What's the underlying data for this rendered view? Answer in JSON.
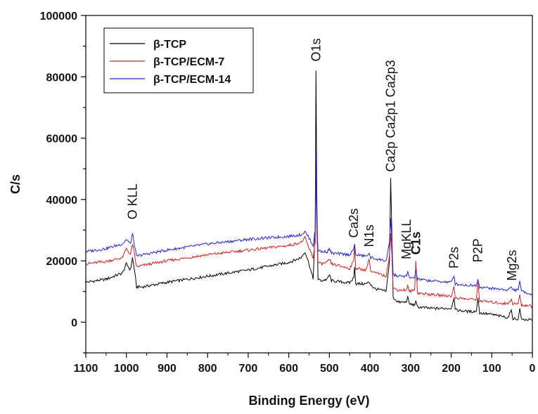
{
  "chart_data": {
    "type": "line",
    "title": "",
    "xlabel": "Binding Energy (eV)",
    "ylabel": "C/s",
    "xlim": [
      1100,
      0
    ],
    "ylim": [
      -10000,
      100000
    ],
    "x_reversed": true,
    "x_ticks": [
      "1100",
      "1000",
      "900",
      "800",
      "700",
      "600",
      "500",
      "400",
      "300",
      "200",
      "100",
      "0"
    ],
    "y_ticks": [
      "0",
      "20000",
      "40000",
      "60000",
      "80000",
      "100000"
    ],
    "grid": false,
    "legend_position": "top-left",
    "series": [
      {
        "name": "β-TCP",
        "color": "#000000",
        "points": [
          [
            1100,
            13000
          ],
          [
            1050,
            14000
          ],
          [
            1010,
            16000
          ],
          [
            1000,
            19000
          ],
          [
            990,
            17000
          ],
          [
            985,
            21000
          ],
          [
            980,
            17000
          ],
          [
            975,
            11500
          ],
          [
            960,
            11500
          ],
          [
            900,
            13000
          ],
          [
            800,
            15000
          ],
          [
            700,
            17000
          ],
          [
            600,
            19500
          ],
          [
            570,
            21000
          ],
          [
            560,
            23000
          ],
          [
            550,
            19000
          ],
          [
            540,
            14000
          ],
          [
            535,
            30000
          ],
          [
            533,
            82000
          ],
          [
            531,
            40000
          ],
          [
            528,
            14000
          ],
          [
            520,
            13500
          ],
          [
            505,
            14000
          ],
          [
            500,
            15500
          ],
          [
            495,
            13500
          ],
          [
            450,
            12800
          ],
          [
            440,
            14500
          ],
          [
            438,
            18000
          ],
          [
            435,
            12500
          ],
          [
            410,
            12500
          ],
          [
            402,
            13000
          ],
          [
            390,
            11000
          ],
          [
            360,
            10000
          ],
          [
            352,
            20000
          ],
          [
            349,
            47000
          ],
          [
            346,
            28000
          ],
          [
            343,
            8000
          ],
          [
            330,
            6500
          ],
          [
            310,
            6500
          ],
          [
            307,
            8500
          ],
          [
            303,
            6000
          ],
          [
            290,
            5500
          ],
          [
            287,
            7000
          ],
          [
            283,
            5000
          ],
          [
            250,
            4500
          ],
          [
            200,
            4500
          ],
          [
            193,
            8000
          ],
          [
            190,
            4000
          ],
          [
            160,
            3500
          ],
          [
            138,
            3500
          ],
          [
            134,
            8000
          ],
          [
            130,
            3000
          ],
          [
            100,
            2500
          ],
          [
            60,
            1500
          ],
          [
            52,
            4000
          ],
          [
            48,
            1200
          ],
          [
            35,
            1000
          ],
          [
            31,
            4500
          ],
          [
            27,
            900
          ],
          [
            10,
            800
          ],
          [
            0,
            600
          ]
        ]
      },
      {
        "name": "β-TCP/ECM-7",
        "color": "#d0201f",
        "points": [
          [
            1100,
            19000
          ],
          [
            1050,
            19800
          ],
          [
            1010,
            21000
          ],
          [
            1000,
            24000
          ],
          [
            990,
            22000
          ],
          [
            985,
            25500
          ],
          [
            980,
            22000
          ],
          [
            975,
            18000
          ],
          [
            960,
            18500
          ],
          [
            900,
            20000
          ],
          [
            800,
            22000
          ],
          [
            700,
            23500
          ],
          [
            600,
            25000
          ],
          [
            570,
            26000
          ],
          [
            560,
            27500
          ],
          [
            550,
            24000
          ],
          [
            540,
            21000
          ],
          [
            535,
            26000
          ],
          [
            533,
            50000
          ],
          [
            531,
            30000
          ],
          [
            528,
            19500
          ],
          [
            520,
            19000
          ],
          [
            505,
            19500
          ],
          [
            500,
            20500
          ],
          [
            495,
            19000
          ],
          [
            450,
            17500
          ],
          [
            440,
            20000
          ],
          [
            438,
            25000
          ],
          [
            435,
            17500
          ],
          [
            410,
            17000
          ],
          [
            402,
            20500
          ],
          [
            398,
            16500
          ],
          [
            360,
            15000
          ],
          [
            352,
            22000
          ],
          [
            349,
            29000
          ],
          [
            346,
            22000
          ],
          [
            343,
            11000
          ],
          [
            330,
            10500
          ],
          [
            310,
            10500
          ],
          [
            307,
            12000
          ],
          [
            303,
            10000
          ],
          [
            290,
            10500
          ],
          [
            287,
            20000
          ],
          [
            283,
            9500
          ],
          [
            250,
            9000
          ],
          [
            200,
            8500
          ],
          [
            193,
            11500
          ],
          [
            190,
            8000
          ],
          [
            160,
            7500
          ],
          [
            138,
            7500
          ],
          [
            134,
            13000
          ],
          [
            130,
            7000
          ],
          [
            100,
            6500
          ],
          [
            60,
            6000
          ],
          [
            52,
            7500
          ],
          [
            48,
            6000
          ],
          [
            35,
            6000
          ],
          [
            31,
            9000
          ],
          [
            27,
            5500
          ],
          [
            10,
            5500
          ],
          [
            0,
            5000
          ]
        ]
      },
      {
        "name": "β-TCP/ECM-14",
        "color": "#2424d6",
        "points": [
          [
            1100,
            23000
          ],
          [
            1050,
            24000
          ],
          [
            1010,
            25500
          ],
          [
            1000,
            27000
          ],
          [
            990,
            25500
          ],
          [
            985,
            29000
          ],
          [
            980,
            25000
          ],
          [
            975,
            21500
          ],
          [
            960,
            22000
          ],
          [
            900,
            23500
          ],
          [
            800,
            25500
          ],
          [
            700,
            27000
          ],
          [
            600,
            28000
          ],
          [
            570,
            28500
          ],
          [
            560,
            29500
          ],
          [
            550,
            27500
          ],
          [
            540,
            25000
          ],
          [
            535,
            30000
          ],
          [
            533,
            57000
          ],
          [
            531,
            33000
          ],
          [
            528,
            23500
          ],
          [
            520,
            23000
          ],
          [
            505,
            23000
          ],
          [
            500,
            24000
          ],
          [
            495,
            22500
          ],
          [
            450,
            22000
          ],
          [
            440,
            24000
          ],
          [
            438,
            25500
          ],
          [
            435,
            22000
          ],
          [
            410,
            21500
          ],
          [
            402,
            22500
          ],
          [
            398,
            21000
          ],
          [
            360,
            20000
          ],
          [
            352,
            26000
          ],
          [
            349,
            34000
          ],
          [
            346,
            26000
          ],
          [
            343,
            15500
          ],
          [
            330,
            15000
          ],
          [
            310,
            15000
          ],
          [
            307,
            16500
          ],
          [
            303,
            14500
          ],
          [
            290,
            14500
          ],
          [
            287,
            17000
          ],
          [
            283,
            14000
          ],
          [
            250,
            13500
          ],
          [
            200,
            13000
          ],
          [
            193,
            15000
          ],
          [
            190,
            12500
          ],
          [
            160,
            12000
          ],
          [
            138,
            12000
          ],
          [
            134,
            14000
          ],
          [
            130,
            11500
          ],
          [
            100,
            11000
          ],
          [
            60,
            10500
          ],
          [
            52,
            11500
          ],
          [
            48,
            10500
          ],
          [
            35,
            10500
          ],
          [
            31,
            13500
          ],
          [
            27,
            10000
          ],
          [
            10,
            9500
          ],
          [
            0,
            9000
          ]
        ]
      }
    ],
    "peak_labels": [
      {
        "text": "O KLL",
        "x": 985,
        "y": 33500,
        "bold": false
      },
      {
        "text": "O1s",
        "x": 533,
        "y": 85000,
        "bold": false
      },
      {
        "text": "Ca2s",
        "x": 440,
        "y": 27500,
        "bold": false
      },
      {
        "text": "N1s",
        "x": 402,
        "y": 24500,
        "bold": false
      },
      {
        "text": "Ca2p Ca2p1 Ca2p3",
        "x": 349,
        "y": 49000,
        "bold": false
      },
      {
        "text": "MgKLL",
        "x": 310,
        "y": 20500,
        "bold": false
      },
      {
        "text": "C1s",
        "x": 287,
        "y": 22000,
        "bold": true
      },
      {
        "text": "P2s",
        "x": 193,
        "y": 17500,
        "bold": false
      },
      {
        "text": "P2P",
        "x": 134,
        "y": 19500,
        "bold": false
      },
      {
        "text": "Mg2s",
        "x": 50,
        "y": 13500,
        "bold": false
      }
    ]
  }
}
